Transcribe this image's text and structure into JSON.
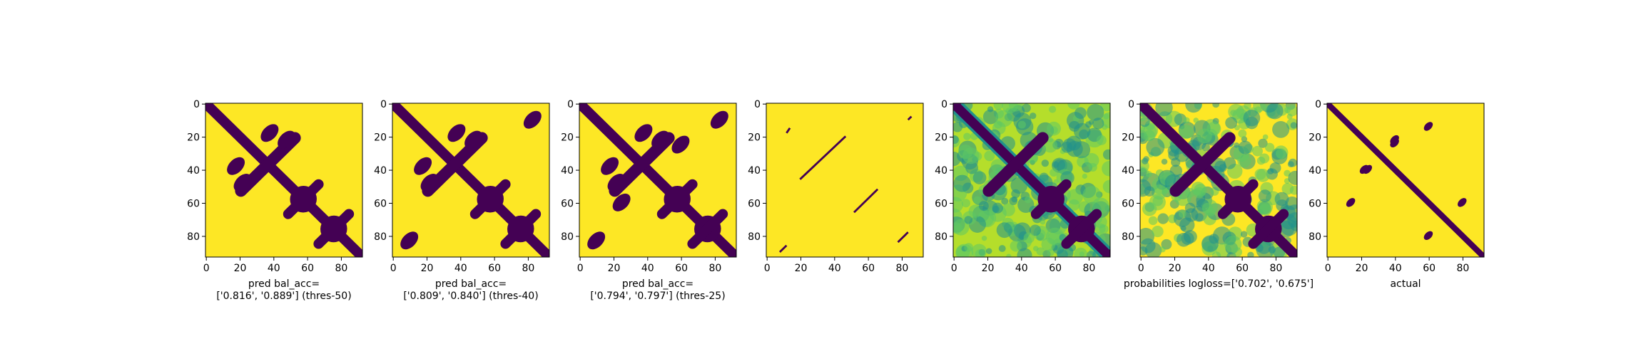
{
  "colors": {
    "yellow": "#fde725",
    "purple": "#440154",
    "teal": "#21918c",
    "light_green": "#b5de2b",
    "green": "#5ec962"
  },
  "chart_data": [
    {
      "type": "heatmap",
      "matrix_size": 93,
      "xlim": [
        0,
        93
      ],
      "ylim": [
        93,
        0
      ],
      "x_ticks": [
        "0",
        "20",
        "40",
        "60",
        "80"
      ],
      "y_ticks": [
        "0",
        "20",
        "40",
        "60",
        "80"
      ],
      "xlabel": [
        "pred bal_acc=",
        "['0.816', '0.889'] (thres-50)"
      ],
      "colormap": "binary purple/yellow",
      "features": {
        "main_diagonal": true,
        "cross_at": [
          37,
          37
        ],
        "crosses": [
          [
            58,
            58
          ],
          [
            76,
            76
          ]
        ],
        "blobs": [
          [
            22,
            48
          ],
          [
            18,
            38
          ]
        ]
      }
    },
    {
      "type": "heatmap",
      "matrix_size": 93,
      "xlim": [
        0,
        93
      ],
      "ylim": [
        93,
        0
      ],
      "x_ticks": [
        "0",
        "20",
        "40",
        "60",
        "80"
      ],
      "y_ticks": [
        "0",
        "20",
        "40",
        "60",
        "80"
      ],
      "xlabel": [
        "pred bal_acc=",
        "['0.809', '0.840'] (thres-40)"
      ],
      "colormap": "binary purple/yellow",
      "features": {
        "main_diagonal": true,
        "cross_at": [
          37,
          37
        ],
        "crosses": [
          [
            58,
            58
          ],
          [
            76,
            76
          ]
        ],
        "blobs": [
          [
            22,
            48
          ],
          [
            18,
            38
          ],
          [
            83,
            10
          ]
        ]
      }
    },
    {
      "type": "heatmap",
      "matrix_size": 93,
      "xlim": [
        0,
        93
      ],
      "ylim": [
        93,
        0
      ],
      "x_ticks": [
        "0",
        "20",
        "40",
        "60",
        "80"
      ],
      "y_ticks": [
        "0",
        "20",
        "40",
        "60",
        "80"
      ],
      "xlabel": [
        "pred bal_acc=",
        "['0.794', '0.797'] (thres-25)"
      ],
      "colormap": "binary purple/yellow",
      "features": {
        "main_diagonal": true,
        "cross_at": [
          37,
          37
        ],
        "crosses": [
          [
            58,
            58
          ],
          [
            76,
            76
          ]
        ],
        "blobs": [
          [
            22,
            48
          ],
          [
            18,
            38
          ],
          [
            83,
            10
          ],
          [
            60,
            25
          ]
        ]
      }
    },
    {
      "type": "heatmap",
      "matrix_size": 93,
      "xlim": [
        0,
        93
      ],
      "ylim": [
        93,
        0
      ],
      "x_ticks": [
        "0",
        "20",
        "40",
        "60",
        "80"
      ],
      "y_ticks": [
        "0",
        "20",
        "40",
        "60",
        "80"
      ],
      "xlabel": [],
      "colormap": "binary purple/yellow",
      "features": {
        "sparse_segments": [
          [
            [
              20,
              46
            ],
            [
              47,
              20
            ]
          ],
          [
            [
              52,
              66
            ],
            [
              66,
              52
            ]
          ],
          [
            [
              78,
              84
            ],
            [
              84,
              78
            ]
          ],
          [
            [
              8,
              90
            ],
            [
              12,
              86
            ]
          ],
          [
            [
              12,
              18
            ],
            [
              14,
              15
            ]
          ],
          [
            [
              84,
              10
            ],
            [
              86,
              8
            ]
          ]
        ]
      }
    },
    {
      "type": "heatmap",
      "matrix_size": 93,
      "xlim": [
        0,
        93
      ],
      "ylim": [
        93,
        0
      ],
      "x_ticks": [
        "0",
        "20",
        "40",
        "60",
        "80"
      ],
      "y_ticks": [
        "0",
        "20",
        "40",
        "60",
        "80"
      ],
      "xlabel": [],
      "colormap": "viridis",
      "features": {
        "main_diagonal": true,
        "cross_at": [
          37,
          37
        ],
        "crosses": [
          [
            58,
            58
          ],
          [
            76,
            76
          ]
        ],
        "offset_diagonals": [
          -5,
          5
        ]
      }
    },
    {
      "type": "heatmap",
      "matrix_size": 93,
      "xlim": [
        0,
        93
      ],
      "ylim": [
        93,
        0
      ],
      "x_ticks": [
        "0",
        "20",
        "40",
        "60",
        "80"
      ],
      "y_ticks": [
        "0",
        "20",
        "40",
        "60",
        "80"
      ],
      "xlabel": [
        "probabilities logloss=['0.702', '0.675']"
      ],
      "colormap": "viridis",
      "features": {
        "main_diagonal": true,
        "cross_at": [
          37,
          37
        ],
        "crosses": [
          [
            58,
            58
          ],
          [
            76,
            76
          ]
        ]
      }
    },
    {
      "type": "heatmap",
      "matrix_size": 93,
      "xlim": [
        0,
        93
      ],
      "ylim": [
        93,
        0
      ],
      "x_ticks": [
        "0",
        "20",
        "40",
        "60",
        "80"
      ],
      "y_ticks": [
        "0",
        "20",
        "40",
        "60",
        "80"
      ],
      "xlabel": [
        "actual"
      ],
      "colormap": "binary purple/yellow",
      "features": {
        "main_diagonal": true,
        "thin": true,
        "blobs": [
          [
            40,
            24
          ],
          [
            22,
            40
          ],
          [
            14,
            60
          ],
          [
            60,
            80
          ]
        ]
      }
    }
  ]
}
